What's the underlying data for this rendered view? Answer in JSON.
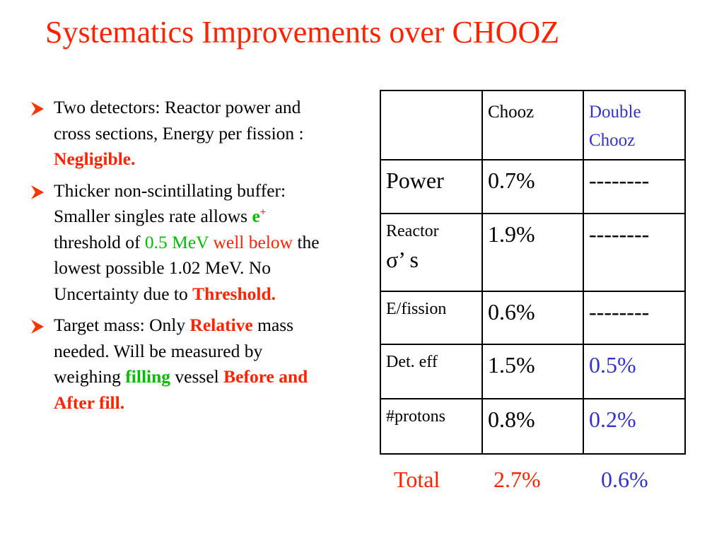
{
  "title": "Systematics Improvements over CHOOZ",
  "bullets": [
    {
      "runs": [
        "Two detectors: Reactor power and cross sections, Energy per fission : ",
        "Negligible."
      ]
    },
    {
      "runs": [
        "Thicker non-scintillating buffer: Smaller singles rate allows ",
        "e",
        "+",
        " threshold of ",
        "0.5 MeV",
        " well below",
        " the lowest possible 1.02 MeV. No Uncertainty due to ",
        "Threshold."
      ]
    },
    {
      "runs": [
        "Target mass: Only ",
        "Relative",
        " mass needed.  Will be measured by weighing ",
        "filling",
        " vessel ",
        "Before and After fill."
      ]
    }
  ],
  "table": {
    "header": [
      "Chooz",
      "Double Chooz"
    ],
    "rows": [
      {
        "label": [
          "Power"
        ],
        "chooz": "0.7%",
        "double_chooz": "--------"
      },
      {
        "label": [
          "Reactor",
          "σ’ s"
        ],
        "chooz": "1.9%",
        "double_chooz": "--------"
      },
      {
        "label": [
          "E/fission"
        ],
        "chooz": "0.6%",
        "double_chooz": "--------"
      },
      {
        "label": [
          "Det. eff"
        ],
        "chooz": "1.5%",
        "double_chooz": "0.5%"
      },
      {
        "label": [
          "#protons"
        ],
        "chooz": "0.8%",
        "double_chooz": "0.2%"
      }
    ],
    "total": [
      "Total",
      "2.7%",
      "0.6%"
    ]
  }
}
